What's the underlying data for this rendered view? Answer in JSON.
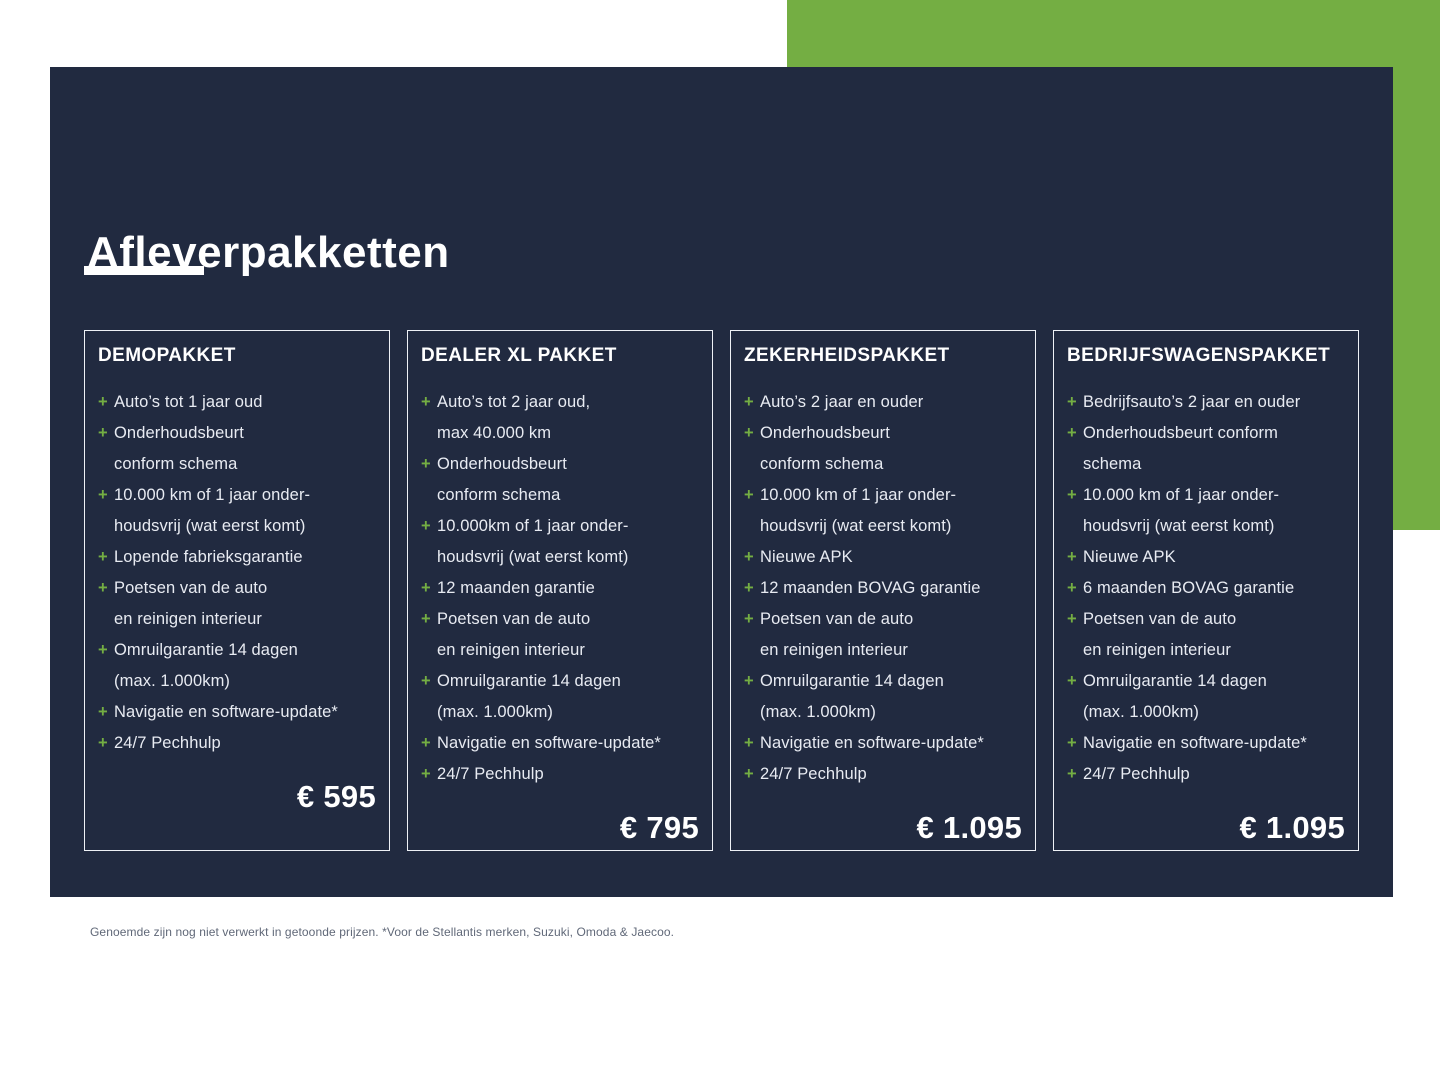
{
  "page": {
    "title": "Afleverpakketten",
    "footnote": "Genoemde zijn nog niet verwerkt in getoonde prijzen. *Voor de Stellantis merken, Suzuki, Omoda & Jaecoo."
  },
  "colors": {
    "panel_navy": "#212A40",
    "accent_green": "#74AE43",
    "body_text": "#E8EBF2",
    "footnote_gray": "#606878"
  },
  "icons": {
    "plus": "+"
  },
  "cards": [
    {
      "title": "DEMOPAKKET",
      "price": "€ 595",
      "items": [
        "Auto’s tot 1 jaar oud",
        "Onderhoudsbeurt\nconform schema",
        "10.000 km of 1 jaar onder-\nhoudsvrij (wat eerst komt)",
        "Lopende fabrieksgarantie",
        "Poetsen van de auto\nen reinigen interieur",
        "Omruilgarantie 14 dagen\n(max. 1.000km)",
        "Navigatie en software-update*",
        "24/7 Pechhulp"
      ]
    },
    {
      "title": "DEALER XL PAKKET",
      "price": "€ 795",
      "items": [
        "Auto’s tot 2 jaar oud,\nmax 40.000 km",
        "Onderhoudsbeurt\nconform schema",
        "10.000km of 1 jaar onder-\nhoudsvrij (wat eerst komt)",
        "12 maanden garantie",
        "Poetsen van de auto\nen reinigen interieur",
        "Omruilgarantie 14 dagen\n(max. 1.000km)",
        "Navigatie en software-update*",
        "24/7 Pechhulp"
      ]
    },
    {
      "title": "ZEKERHEIDSPAKKET",
      "price": "€ 1.095",
      "items": [
        "Auto’s 2 jaar en ouder",
        "Onderhoudsbeurt\nconform schema",
        "10.000 km of 1 jaar onder-\nhoudsvrij (wat eerst komt)",
        "Nieuwe APK",
        "12 maanden BOVAG garantie",
        "Poetsen van de auto\nen reinigen interieur",
        "Omruilgarantie 14 dagen\n(max. 1.000km)",
        "Navigatie en software-update*",
        "24/7 Pechhulp"
      ]
    },
    {
      "title": "BEDRIJFSWAGENSPAKKET",
      "price": "€ 1.095",
      "items": [
        "Bedrijfsauto’s 2 jaar en ouder",
        "Onderhoudsbeurt conform\nschema",
        "10.000 km of 1 jaar onder-\nhoudsvrij (wat eerst komt)",
        "Nieuwe APK",
        "6 maanden BOVAG garantie",
        "Poetsen van de auto\nen reinigen interieur",
        "Omruilgarantie 14 dagen\n(max. 1.000km)",
        "Navigatie en software-update*",
        "24/7 Pechhulp"
      ]
    }
  ]
}
